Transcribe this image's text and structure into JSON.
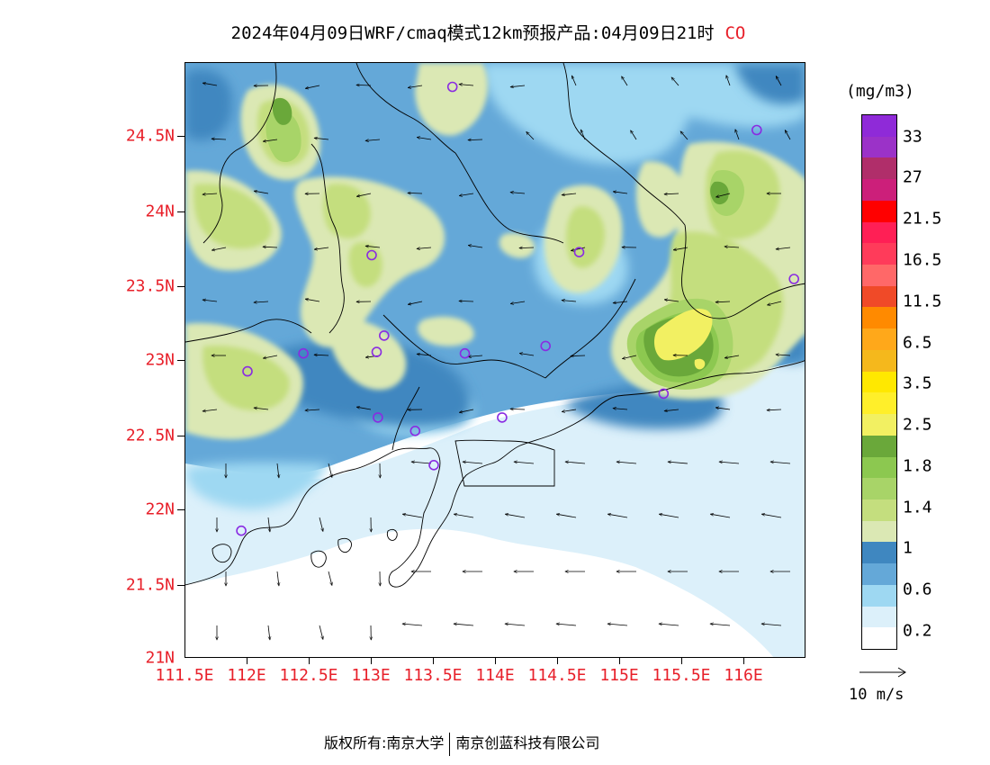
{
  "title": {
    "text": "2024年04月09日WRF/cmaq模式12km预报产品:04月09日21时",
    "pollutant": "CO"
  },
  "map": {
    "lat_labels": [
      "24.5N",
      "24N",
      "23.5N",
      "23N",
      "22.5N",
      "22N",
      "21.5N",
      "21N"
    ],
    "lon_labels": [
      "111.5E",
      "112E",
      "112.5E",
      "113E",
      "113.5E",
      "114E",
      "114.5E",
      "115E",
      "115.5E",
      "116E"
    ],
    "extent": {
      "lon": [
        111.5,
        116.5
      ],
      "lat": [
        21.0,
        25.0
      ]
    },
    "stations": [
      {
        "lon": 113.65,
        "lat": 24.84
      },
      {
        "lon": 116.1,
        "lat": 24.55
      },
      {
        "lon": 113.0,
        "lat": 23.71
      },
      {
        "lon": 114.67,
        "lat": 23.73
      },
      {
        "lon": 116.4,
        "lat": 23.55
      },
      {
        "lon": 112.45,
        "lat": 23.05
      },
      {
        "lon": 112.0,
        "lat": 22.93
      },
      {
        "lon": 113.1,
        "lat": 23.17
      },
      {
        "lon": 113.04,
        "lat": 23.06
      },
      {
        "lon": 113.75,
        "lat": 23.05
      },
      {
        "lon": 114.4,
        "lat": 23.1
      },
      {
        "lon": 115.35,
        "lat": 22.78
      },
      {
        "lon": 113.05,
        "lat": 22.62
      },
      {
        "lon": 113.35,
        "lat": 22.53
      },
      {
        "lon": 114.05,
        "lat": 22.62
      },
      {
        "lon": 113.5,
        "lat": 22.3
      },
      {
        "lon": 111.95,
        "lat": 21.86
      }
    ]
  },
  "legend": {
    "unit": "(mg/m3)",
    "labels": [
      "33",
      "27",
      "21.5",
      "16.5",
      "11.5",
      "6.5",
      "3.5",
      "2.5",
      "1.8",
      "1.4",
      "1",
      "0.6",
      "0.2"
    ],
    "colors": [
      "#8f2ad8",
      "#9b32c8",
      "#b02e6a",
      "#cc1f7a",
      "#ff0000",
      "#ff1f55",
      "#ff3b5a",
      "#ff6868",
      "#f04a28",
      "#ff8a00",
      "#ffa81a",
      "#f5b81c",
      "#ffe800",
      "#ffef2a",
      "#f2f062",
      "#6aa83a",
      "#8cc850",
      "#a8d468",
      "#c4de7e",
      "#dbe8b4",
      "#3f87c0",
      "#64a8d8",
      "#9ed8f2",
      "#dcf0fa",
      "#ffffff"
    ],
    "ref_vector": "10 m/s"
  },
  "footer": {
    "copyright": "版权所有:南京大学",
    "company": "南京创蓝科技有限公司"
  }
}
